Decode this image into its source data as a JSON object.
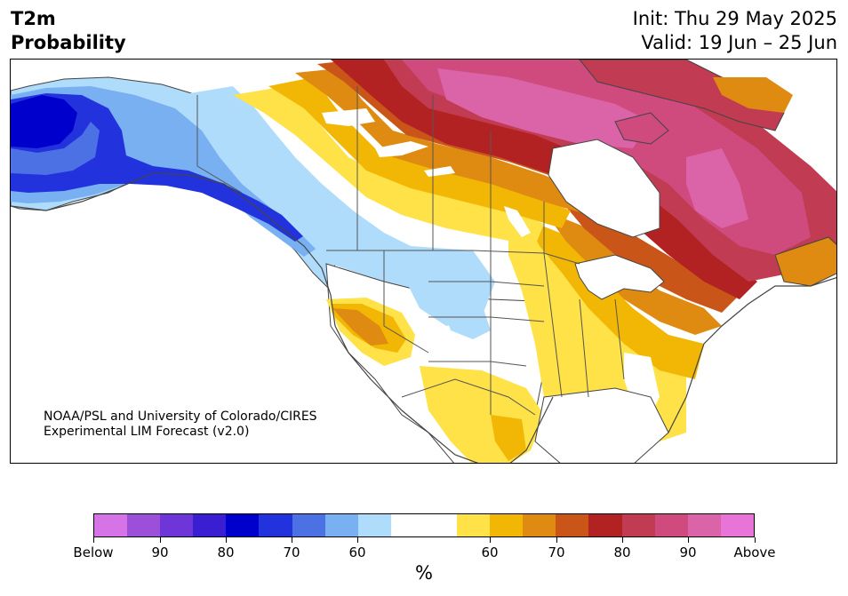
{
  "header": {
    "variable": "T2m",
    "product": "Probability",
    "init": "Init: Thu 29 May 2025",
    "valid": "Valid: 19 Jun – 25 Jun"
  },
  "credit": {
    "line1": "NOAA/PSL and University of Colorado/CIRES",
    "line2": "Experimental LIM Forecast (v2.0)"
  },
  "colorbar": {
    "colors": [
      "#d673e6",
      "#9c4fd9",
      "#6e36d8",
      "#3a1fd2",
      "#0000cc",
      "#2233dd",
      "#4b71e4",
      "#78b0f2",
      "#afdcfa",
      "#ffffff",
      "#ffffff",
      "#ffe148",
      "#f2b705",
      "#df8a10",
      "#c95618",
      "#b32222",
      "#c13b52",
      "#cf4a7d",
      "#db63a8",
      "#e874d8"
    ],
    "tick_labels": [
      "Below",
      "90",
      "80",
      "70",
      "60",
      "60",
      "70",
      "80",
      "90",
      "Above"
    ],
    "unit": "%"
  },
  "map": {
    "colors": {
      "blue_deep": "#0000cc",
      "blue_dark": "#2233dd",
      "blue_mid": "#4b71e4",
      "blue_light": "#78b0f2",
      "blue_pale": "#afdcfa",
      "yellow": "#ffe148",
      "gold": "#f2b705",
      "orange": "#df8a10",
      "dark_orange": "#c95618",
      "red": "#b32222",
      "crimson": "#c13b52",
      "rose": "#cf4a7d",
      "pink": "#db63a8"
    }
  }
}
